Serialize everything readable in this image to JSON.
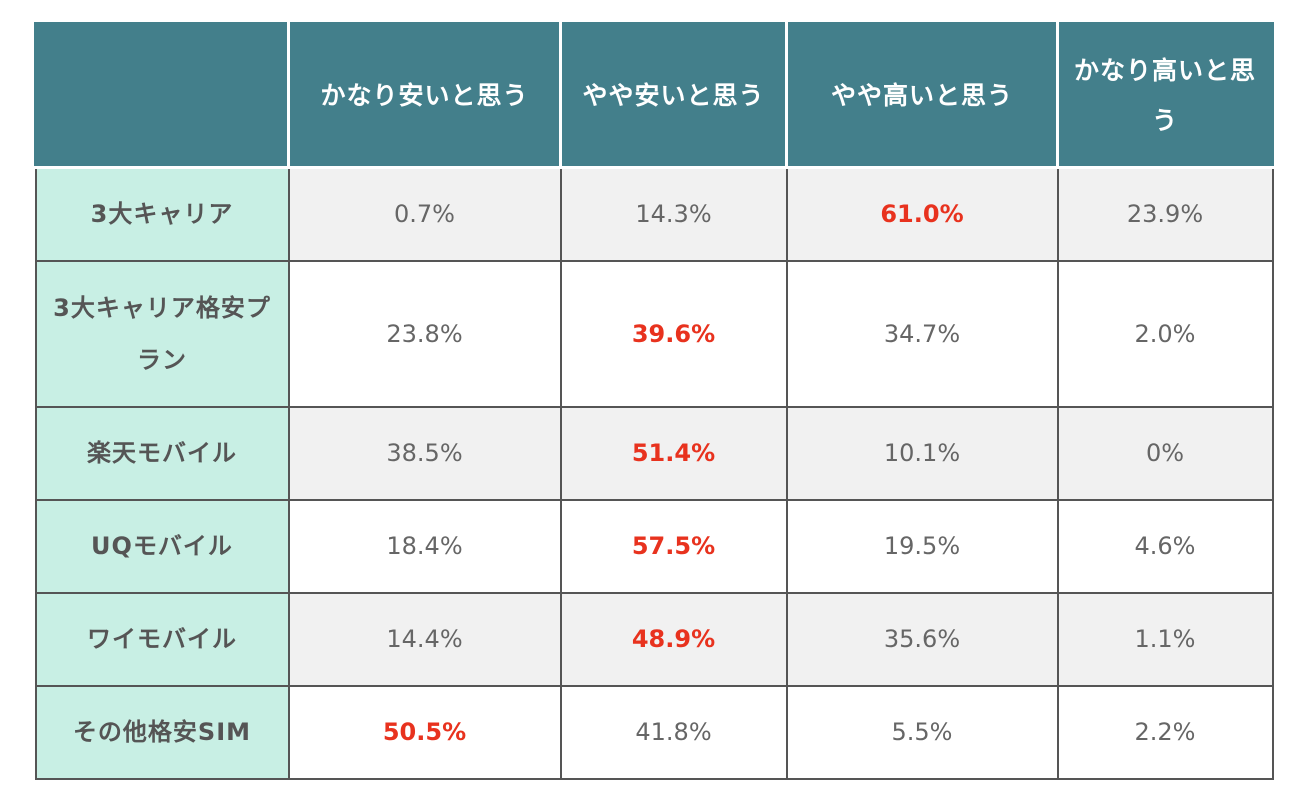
{
  "table": {
    "headers": [
      "",
      "かなり安いと思う",
      "やや安いと思う",
      "やや高いと思う",
      "かなり高いと思う"
    ],
    "rows": [
      {
        "label": "3大キャリア",
        "values": [
          "0.7%",
          "14.3%",
          "61.0%",
          "23.9%"
        ],
        "highlight_index": 2
      },
      {
        "label": "3大キャリア格安プラン",
        "values": [
          "23.8%",
          "39.6%",
          "34.7%",
          "2.0%"
        ],
        "highlight_index": 1
      },
      {
        "label": "楽天モバイル",
        "values": [
          "38.5%",
          "51.4%",
          "10.1%",
          "0%"
        ],
        "highlight_index": 1
      },
      {
        "label": "UQモバイル",
        "values": [
          "18.4%",
          "57.5%",
          "19.5%",
          "4.6%"
        ],
        "highlight_index": 1
      },
      {
        "label": "ワイモバイル",
        "values": [
          "14.4%",
          "48.9%",
          "35.6%",
          "1.1%"
        ],
        "highlight_index": 1
      },
      {
        "label": "その他格安SIM",
        "values": [
          "50.5%",
          "41.8%",
          "5.5%",
          "2.2%"
        ],
        "highlight_index": 0
      }
    ]
  },
  "colors": {
    "header_bg": "#437f8b",
    "header_text": "#ffffff",
    "row_label_bg": "#c8efe4",
    "highlight_text": "#e8321e",
    "shaded_row_bg": "#f1f1f1"
  }
}
